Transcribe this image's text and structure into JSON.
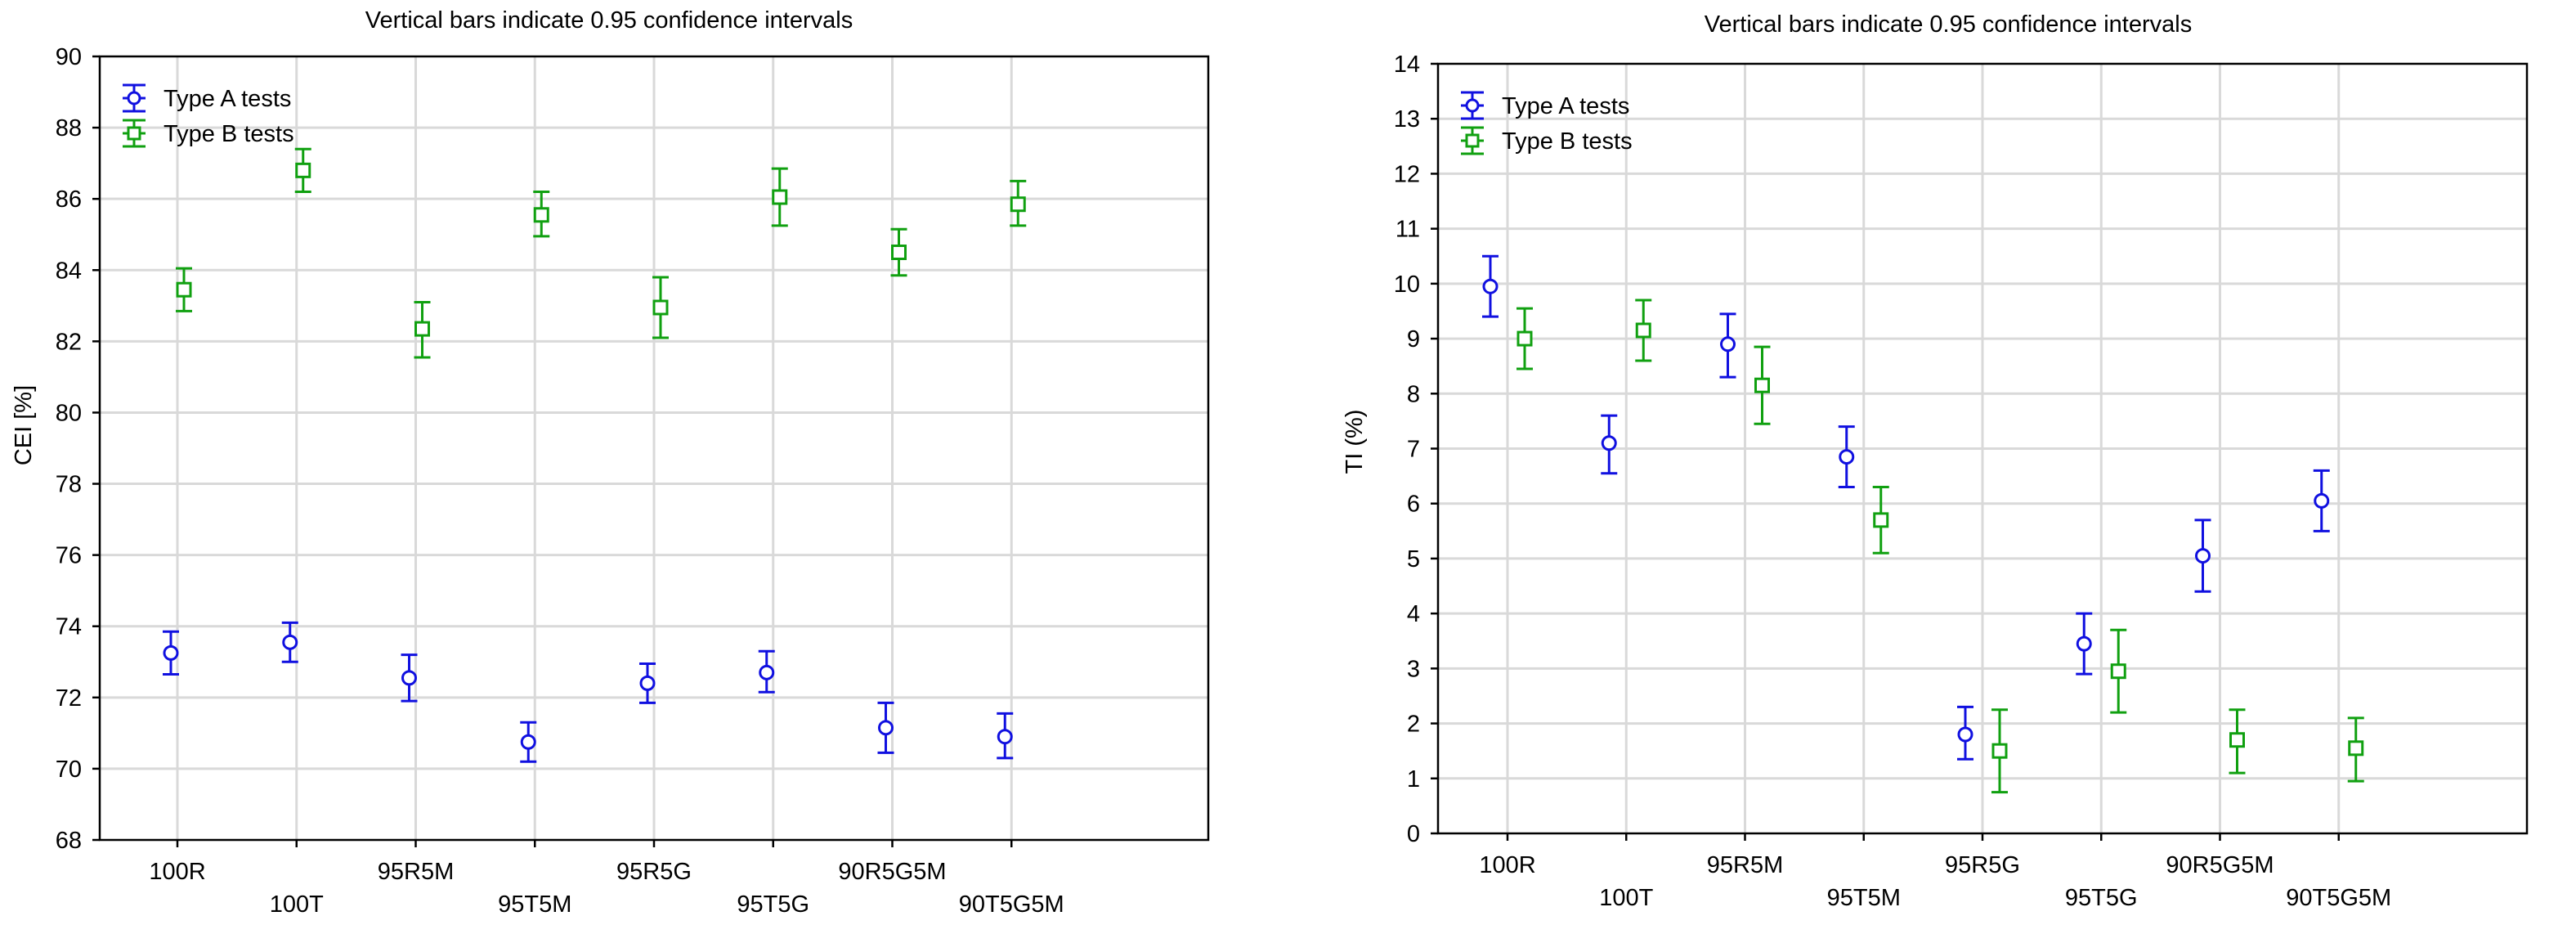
{
  "chart_data": [
    {
      "type": "scatter",
      "title": "Vertical bars indicate 0.95 confidence intervals",
      "xlabel": "",
      "ylabel": "CEI [%]",
      "ylim": [
        68,
        90
      ],
      "yticks": [
        68,
        70,
        72,
        74,
        76,
        78,
        80,
        82,
        84,
        86,
        88,
        90
      ],
      "categories": [
        "100R",
        "100T",
        "95R5M",
        "95T5M",
        "95R5G",
        "95T5G",
        "90R5G5M",
        "90T5G5M"
      ],
      "grid": true,
      "legend_position": "top-left",
      "series": [
        {
          "name": "Type A tests",
          "color": "#1010e0",
          "marker": "circle",
          "values": [
            73.25,
            73.55,
            72.55,
            70.75,
            72.4,
            72.7,
            71.15,
            70.9
          ],
          "ci_low": [
            72.65,
            73.0,
            71.9,
            70.2,
            71.85,
            72.15,
            70.45,
            70.3
          ],
          "ci_high": [
            73.85,
            74.1,
            73.2,
            71.3,
            72.95,
            73.3,
            71.85,
            71.55
          ]
        },
        {
          "name": "Type B tests",
          "color": "#10a010",
          "marker": "square",
          "values": [
            83.45,
            86.8,
            82.35,
            85.55,
            82.95,
            86.05,
            84.5,
            85.85
          ],
          "ci_low": [
            82.85,
            86.2,
            81.55,
            84.95,
            82.1,
            85.25,
            83.85,
            85.25
          ],
          "ci_high": [
            84.05,
            87.4,
            83.1,
            86.2,
            83.8,
            86.85,
            85.15,
            86.5
          ]
        }
      ]
    },
    {
      "type": "scatter",
      "title": "Vertical bars indicate 0.95 confidence intervals",
      "xlabel": "",
      "ylabel": "TI (%)",
      "ylim": [
        0,
        14
      ],
      "yticks": [
        0,
        1,
        2,
        3,
        4,
        5,
        6,
        7,
        8,
        9,
        10,
        11,
        12,
        13,
        14
      ],
      "categories": [
        "100R",
        "100T",
        "95R5M",
        "95T5M",
        "95R5G",
        "95T5G",
        "90R5G5M",
        "90T5G5M"
      ],
      "grid": true,
      "legend_position": "top-left",
      "series": [
        {
          "name": "Type A tests",
          "color": "#1010e0",
          "marker": "circle",
          "values": [
            9.95,
            7.1,
            8.9,
            6.85,
            1.8,
            3.45,
            5.05,
            6.05
          ],
          "ci_low": [
            9.4,
            6.55,
            8.3,
            6.3,
            1.35,
            2.9,
            4.4,
            5.5
          ],
          "ci_high": [
            10.5,
            7.6,
            9.45,
            7.4,
            2.3,
            4.0,
            5.7,
            6.6
          ]
        },
        {
          "name": "Type B tests",
          "color": "#10a010",
          "marker": "square",
          "values": [
            9.0,
            9.15,
            8.15,
            5.7,
            1.5,
            2.95,
            1.7,
            1.55
          ],
          "ci_low": [
            8.45,
            8.6,
            7.45,
            5.1,
            0.75,
            2.2,
            1.1,
            0.95
          ],
          "ci_high": [
            9.55,
            9.7,
            8.85,
            6.3,
            2.25,
            3.7,
            2.25,
            2.1
          ]
        }
      ]
    }
  ]
}
